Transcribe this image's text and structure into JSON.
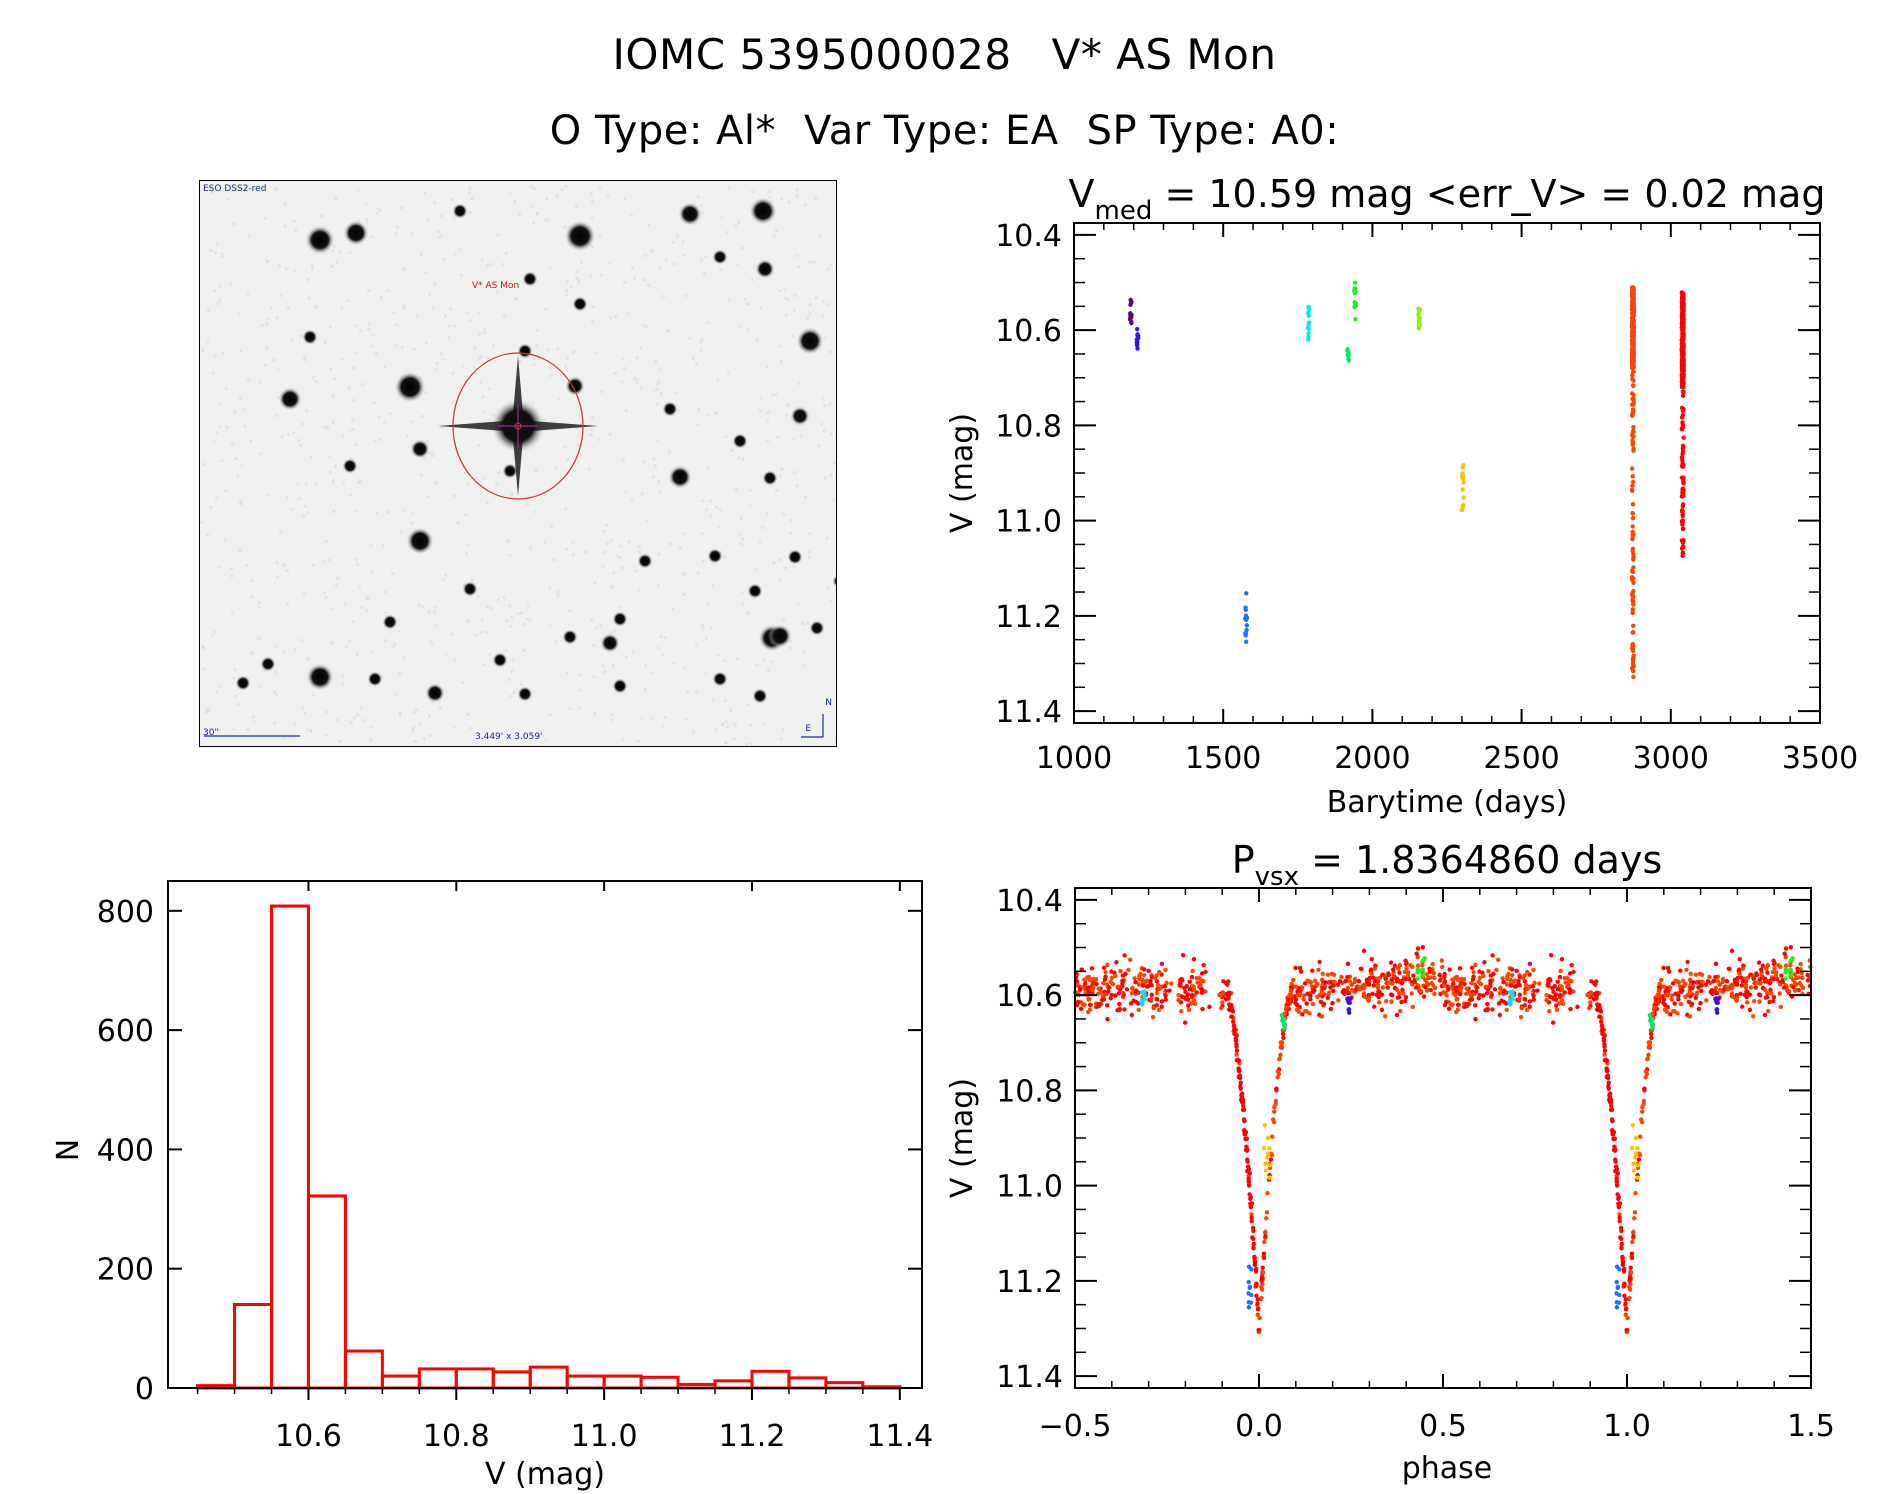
{
  "header": {
    "catalog_id": "IOMC 5395000028",
    "star_name": "V* AS Mon",
    "object_type": "O Type: Al*",
    "var_type": "Var Type: EA",
    "sp_type": "SP Type: A0:"
  },
  "finder_chart": {
    "survey_label": "ESO DSS2-red",
    "target_label": "V* AS Mon",
    "fov_label": "3.449' x 3.059'",
    "scale_label": "30\"",
    "north_label": "N",
    "east_label": "E",
    "colors": {
      "marker_circle": "#c0392b",
      "crosshair": "#a020a0",
      "annotation": "#1a2a9c"
    }
  },
  "chart_data": [
    {
      "id": "light-curve",
      "type": "scatter",
      "title_prefix": "V",
      "title_subscript": "med",
      "title_rest": " = 10.59 mag <err_V> = 0.02 mag",
      "xlabel": "Barytime (days)",
      "ylabel": "V (mag)",
      "xlim": [
        1000,
        3500
      ],
      "ylim": [
        10.375,
        11.425
      ],
      "y_inverted": true,
      "xticks": [
        1000,
        1500,
        2000,
        2500,
        3000,
        3500
      ],
      "xtick_labels": [
        "1000",
        "1500",
        "2000",
        "2500",
        "3000",
        "3500"
      ],
      "yticks": [
        10.4,
        10.6,
        10.8,
        11.0,
        11.2,
        11.4
      ],
      "ytick_labels": [
        "10.4",
        "10.6",
        "10.8",
        "11.0",
        "11.2",
        "11.4"
      ],
      "grid": false,
      "series": [
        {
          "name": "season-1a",
          "color": "#5a0a7a",
          "x": 1190,
          "y_range": [
            10.53,
            10.59
          ],
          "n": 14
        },
        {
          "name": "season-1b",
          "color": "#3a10e0",
          "x": 1213,
          "y_range": [
            10.59,
            10.64
          ],
          "n": 12
        },
        {
          "name": "season-2",
          "color": "#1a70ff",
          "x": 1577,
          "y_range": [
            11.15,
            11.28
          ],
          "n": 14
        },
        {
          "name": "season-3",
          "color": "#00e8ff",
          "x": 1785,
          "y_range": [
            10.55,
            10.62
          ],
          "n": 12
        },
        {
          "name": "season-4a",
          "color": "#00e870",
          "x": 1918,
          "y_range": [
            10.64,
            10.67
          ],
          "n": 8
        },
        {
          "name": "season-4b",
          "color": "#20ee20",
          "x": 1942,
          "y_range": [
            10.49,
            10.58
          ],
          "n": 14
        },
        {
          "name": "season-5",
          "color": "#90f000",
          "x": 2157,
          "y_range": [
            10.55,
            10.6
          ],
          "n": 12
        },
        {
          "name": "season-6",
          "color": "#ffc000",
          "x": 2303,
          "y_range": [
            10.87,
            11.01
          ],
          "n": 14
        },
        {
          "name": "season-7",
          "color": "#ff4400",
          "x": 2873,
          "y_range": [
            10.51,
            11.33
          ],
          "n": 420,
          "dense_range": [
            10.51,
            10.68
          ]
        },
        {
          "name": "season-8",
          "color": "#ff0000",
          "x": 3040,
          "y_range": [
            10.52,
            11.08
          ],
          "n": 380,
          "dense_range": [
            10.52,
            10.72
          ]
        }
      ]
    },
    {
      "id": "histogram",
      "type": "bar",
      "xlabel": "V (mag)",
      "ylabel": "N",
      "xlim": [
        10.41,
        11.43
      ],
      "ylim": [
        0,
        850
      ],
      "xticks": [
        10.6,
        10.8,
        11.0,
        11.2,
        11.4
      ],
      "xtick_labels": [
        "10.6",
        "10.8",
        "11.0",
        "11.2",
        "11.4"
      ],
      "yticks": [
        0,
        200,
        400,
        600,
        800
      ],
      "ytick_labels": [
        "0",
        "200",
        "400",
        "600",
        "800"
      ],
      "bin_width": 0.05,
      "bin_start": [
        10.45,
        10.5,
        10.55,
        10.6,
        10.65,
        10.7,
        10.75,
        10.8,
        10.85,
        10.9,
        10.95,
        11.0,
        11.05,
        11.1,
        11.15,
        11.2,
        11.25,
        11.3,
        11.35
      ],
      "values": [
        4,
        140,
        808,
        322,
        62,
        20,
        32,
        32,
        27,
        35,
        20,
        20,
        18,
        6,
        12,
        28,
        17,
        9,
        2
      ],
      "color": "#ff0000",
      "grid": false
    },
    {
      "id": "phased-light-curve",
      "type": "scatter",
      "title_prefix": "P",
      "title_subscript": "vsx",
      "title_rest": " = 1.8364860 days",
      "xlabel": "phase",
      "ylabel": "V (mag)",
      "xlim": [
        -0.5,
        1.5
      ],
      "ylim": [
        10.375,
        11.425
      ],
      "y_inverted": true,
      "xticks": [
        -0.5,
        0.0,
        0.5,
        1.0,
        1.5
      ],
      "xtick_labels": [
        "−0.5",
        "0.0",
        "0.5",
        "1.0",
        "1.5"
      ],
      "yticks": [
        10.4,
        10.6,
        10.8,
        11.0,
        11.2,
        11.4
      ],
      "ytick_labels": [
        "10.4",
        "10.6",
        "10.8",
        "11.0",
        "11.2",
        "11.4"
      ],
      "period_days": 1.836486,
      "eclipse": {
        "phase": 0.0,
        "depth_mag": 11.3,
        "out_of_eclipse_mag": 10.59,
        "half_width_phase": 0.09
      },
      "grid": false,
      "series": [
        {
          "name": "season-7",
          "color": "#ff4400"
        },
        {
          "name": "season-8",
          "color": "#ff0000"
        },
        {
          "name": "season-2",
          "color": "#1a70ff",
          "phase_range": [
            -0.03,
            -0.02
          ],
          "y_range": [
            11.15,
            11.27
          ]
        },
        {
          "name": "season-6",
          "color": "#ffc000",
          "phase_range": [
            0.01,
            0.03
          ],
          "y_range": [
            10.87,
            11.0
          ]
        },
        {
          "name": "season-4a",
          "color": "#00e870",
          "phase_range": [
            0.06,
            0.07
          ],
          "y_range": [
            10.64,
            10.67
          ]
        },
        {
          "name": "season-1b",
          "color": "#3a10e0",
          "phase_range": [
            0.24,
            0.25
          ],
          "y_range": [
            10.6,
            10.64
          ]
        },
        {
          "name": "season-3",
          "color": "#00e8ff",
          "phase_range": [
            -0.32,
            -0.31
          ],
          "y_range": [
            10.59,
            10.62
          ]
        },
        {
          "name": "season-4b",
          "color": "#20ee20",
          "phase_range": [
            0.43,
            0.45
          ],
          "y_range": [
            10.52,
            10.57
          ]
        }
      ]
    }
  ]
}
